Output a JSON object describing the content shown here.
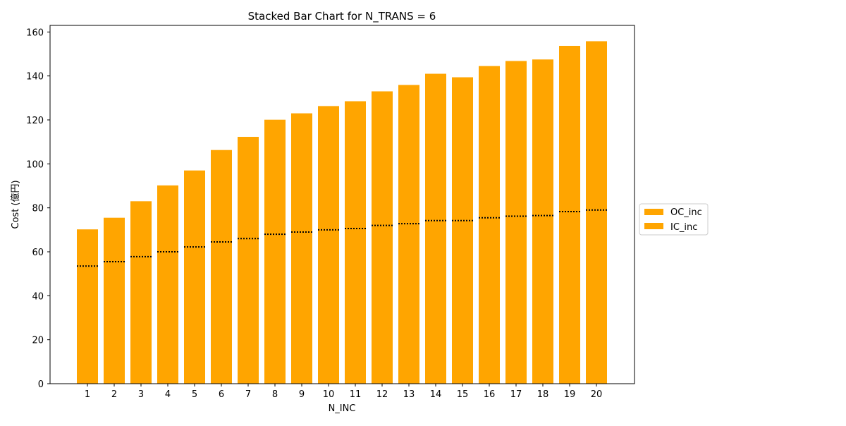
{
  "chart_data": {
    "type": "bar",
    "stacked": true,
    "title": "Stacked Bar Chart for N_TRANS = 6",
    "xlabel": "N_INC",
    "ylabel": "Cost (億円)",
    "ylim": [
      0,
      163
    ],
    "yticks": [
      0,
      20,
      40,
      60,
      80,
      100,
      120,
      140,
      160
    ],
    "categories": [
      "1",
      "2",
      "3",
      "4",
      "5",
      "6",
      "7",
      "8",
      "9",
      "10",
      "11",
      "12",
      "13",
      "14",
      "15",
      "16",
      "17",
      "18",
      "19",
      "20"
    ],
    "series": [
      {
        "name": "IC_inc",
        "color": "#ffa500",
        "values": [
          53.5,
          55.5,
          57.8,
          60.0,
          62.2,
          64.5,
          66.0,
          68.0,
          69.0,
          70.0,
          70.6,
          72.0,
          72.8,
          74.2,
          74.2,
          75.5,
          76.2,
          76.5,
          78.3,
          79.0
        ]
      },
      {
        "name": "OC_inc",
        "color": "#ffa500",
        "values": [
          16.7,
          20.0,
          25.2,
          30.2,
          34.8,
          41.8,
          46.3,
          52.1,
          54.0,
          56.3,
          57.9,
          61.0,
          63.1,
          66.8,
          65.2,
          69.0,
          70.6,
          71.0,
          75.4,
          76.8
        ]
      }
    ],
    "boundary_line_style": "dotted black",
    "legend": {
      "placement": "right",
      "entries": [
        {
          "label": "OC_inc",
          "color": "#ffa500"
        },
        {
          "label": "IC_inc",
          "color": "#ffa500"
        }
      ]
    },
    "grid": false
  }
}
